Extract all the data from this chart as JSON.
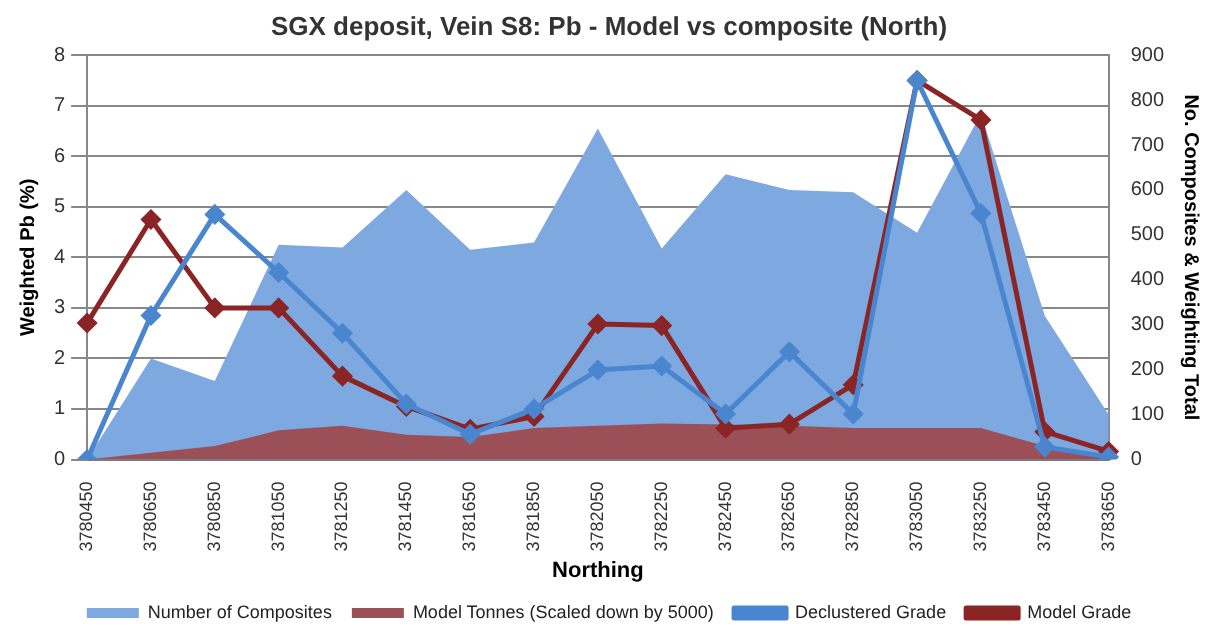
{
  "chart_data": {
    "type": "line",
    "title": "SGX deposit, Vein S8: Pb - Model vs composite (North)",
    "xlabel": "Northing",
    "ylabel": "Weighted Pb (%)",
    "y2label": "No. Composites & Weighting Total",
    "categories": [
      "3780450",
      "3780650",
      "3780850",
      "3781050",
      "3781250",
      "3781450",
      "3781650",
      "3781850",
      "3782050",
      "3782250",
      "3782450",
      "3782650",
      "3782850",
      "3783050",
      "3783250",
      "3783450",
      "3783650"
    ],
    "series": [
      {
        "name": "Number of Composites",
        "type": "area",
        "axis": "y2",
        "marker": "none",
        "color": "#7ea8e0",
        "values": [
          0,
          225,
          175,
          478,
          472,
          600,
          467,
          483,
          737,
          470,
          635,
          600,
          595,
          505,
          770,
          320,
          100
        ]
      },
      {
        "name": "Model Tonnes (Scaled down by 5000)",
        "type": "area",
        "axis": "y2",
        "marker": "none",
        "color": "#9b5058",
        "values": [
          0,
          15,
          30,
          65,
          75,
          55,
          50,
          70,
          75,
          80,
          78,
          75,
          70,
          70,
          70,
          30,
          5
        ]
      },
      {
        "name": "Declustered Grade",
        "color": "#4a86d0",
        "values": [
          0,
          2.85,
          4.85,
          3.7,
          2.5,
          1.1,
          0.5,
          1.0,
          1.77,
          1.85,
          0.9,
          2.13,
          0.9,
          7.5,
          4.87,
          0.25,
          0.05
        ]
      },
      {
        "name": "Model Grade",
        "color": "#8b2424",
        "values": [
          2.7,
          4.75,
          3.0,
          3.0,
          1.65,
          1.05,
          0.6,
          0.85,
          2.68,
          2.65,
          0.62,
          0.7,
          1.48,
          7.5,
          6.72,
          0.55,
          0.16
        ]
      }
    ],
    "ylim": [
      0,
      8
    ],
    "yticks": [
      0,
      1,
      2,
      3,
      4,
      5,
      6,
      7,
      8
    ],
    "y2lim": [
      0,
      900
    ],
    "y2ticks": [
      0,
      100,
      200,
      300,
      400,
      500,
      600,
      700,
      800,
      900
    ],
    "grid": "y",
    "legend": "bottom",
    "marker": "diamond",
    "line_style": "solid"
  }
}
